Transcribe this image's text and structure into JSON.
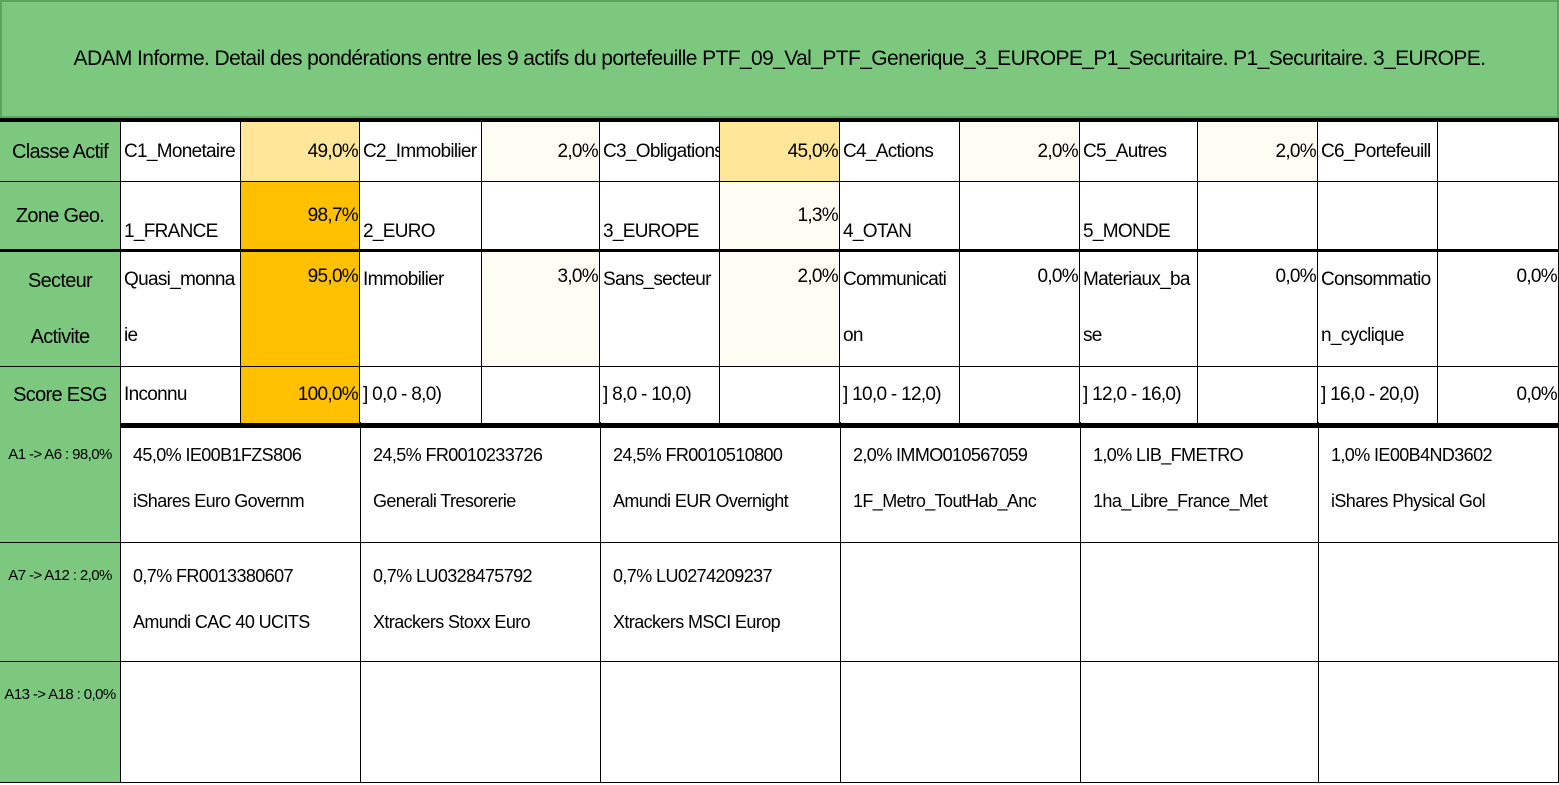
{
  "title": "ADAM Informe. Detail des pondérations entre les 9 actifs du portefeuille PTF_09_Val_PTF_Generique_3_EUROPE_P1_Securitaire. P1_Securitaire. 3_EUROPE.",
  "rows": [
    {
      "label": "Classe Actif",
      "cells": [
        [
          "C1_Monetaire",
          "49,0%"
        ],
        [
          "C2_Immobilier",
          "2,0%"
        ],
        [
          "C3_Obligations",
          "45,0%"
        ],
        [
          "C4_Actions",
          "2,0%"
        ],
        [
          "C5_Autres",
          "2,0%"
        ],
        [
          "C6_Portefeuill",
          ""
        ]
      ]
    },
    {
      "label": "Zone Geo.",
      "cells": [
        [
          "1_FRANCE",
          "98,7%"
        ],
        [
          "2_EURO",
          ""
        ],
        [
          "3_EUROPE",
          "1,3%"
        ],
        [
          "4_OTAN",
          ""
        ],
        [
          "5_MONDE",
          ""
        ],
        [
          "",
          ""
        ]
      ]
    },
    {
      "label": "Secteur Activite",
      "cells": [
        [
          "Quasi_monnaie",
          "95,0%"
        ],
        [
          "Immobilier",
          "3,0%"
        ],
        [
          "Sans_secteur",
          "2,0%"
        ],
        [
          "Communication",
          "0,0%"
        ],
        [
          "Materiaux_base",
          "0,0%"
        ],
        [
          "Consommation_cyclique",
          "0,0%"
        ]
      ]
    },
    {
      "label": "Score ESG",
      "cells": [
        [
          "Inconnu",
          "100,0%"
        ],
        [
          "] 0,0 - 8,0)",
          ""
        ],
        [
          "] 8,0 - 10,0)",
          ""
        ],
        [
          "] 10,0 - 12,0)",
          ""
        ],
        [
          "] 12,0 - 16,0)",
          ""
        ],
        [
          "] 16,0 - 20,0)",
          "0,0%"
        ]
      ]
    }
  ],
  "groups": [
    {
      "label": "A1 -> A6 : 98,0%",
      "assets": [
        [
          "45,0% IE00B1FZS806",
          "iShares Euro Governm"
        ],
        [
          "24,5% FR0010233726",
          "Generali Tresorerie"
        ],
        [
          "24,5% FR0010510800",
          "Amundi EUR Overnight"
        ],
        [
          "2,0% IMMO010567059",
          "1F_Metro_ToutHab_Anc"
        ],
        [
          "1,0% LIB_FMETRO",
          "1ha_Libre_France_Met"
        ],
        [
          "1,0% IE00B4ND3602",
          "iShares Physical Gol"
        ]
      ]
    },
    {
      "label": "A7 -> A12 : 2,0%",
      "assets": [
        [
          "0,7% FR0013380607",
          "Amundi CAC 40 UCITS"
        ],
        [
          "0,7% LU0328475792",
          "Xtrackers Stoxx Euro"
        ],
        [
          "0,7% LU0274209237",
          "Xtrackers MSCI Europ"
        ],
        [
          "",
          ""
        ],
        [
          "",
          ""
        ],
        [
          "",
          ""
        ]
      ]
    },
    {
      "label": "A13 -> A18 : 0,0%",
      "assets": [
        [
          "",
          ""
        ],
        [
          "",
          ""
        ],
        [
          "",
          ""
        ],
        [
          "",
          ""
        ],
        [
          "",
          ""
        ],
        [
          "",
          ""
        ]
      ]
    }
  ],
  "colors": {
    "header_green": "#7dc87f",
    "high": "#ffc000",
    "medium": "#ffe699",
    "low": "#fffcf3"
  }
}
